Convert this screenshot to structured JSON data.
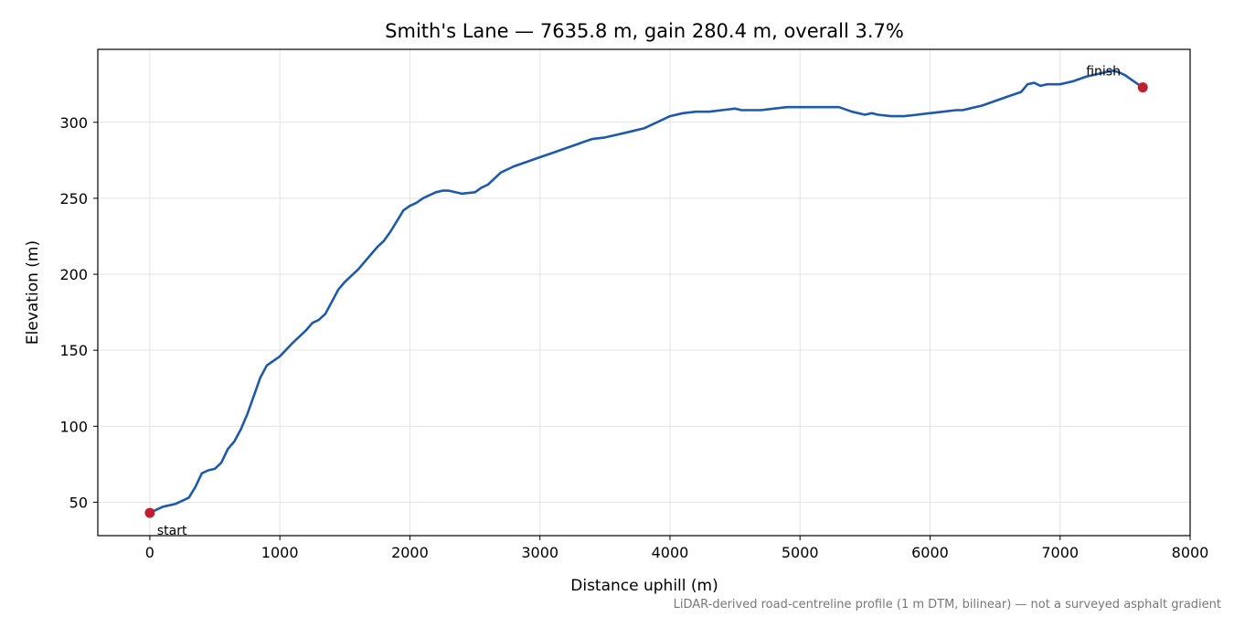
{
  "chart_data": {
    "type": "line",
    "title": "Smith's Lane — 7635.8 m, gain 280.4 m, overall 3.7%",
    "xlabel": "Distance uphill (m)",
    "ylabel": "Elevation (m)",
    "xlim": [
      -400,
      8000
    ],
    "ylim": [
      28,
      348
    ],
    "xticks": [
      0,
      1000,
      2000,
      3000,
      4000,
      5000,
      6000,
      7000,
      8000
    ],
    "yticks": [
      50,
      100,
      150,
      200,
      250,
      300
    ],
    "grid": true,
    "colors": {
      "line": "#1f5aa8",
      "marker": "#c0202e"
    },
    "series": [
      {
        "x": [
          0,
          50,
          100,
          150,
          200,
          250,
          300,
          350,
          400,
          450,
          500,
          550,
          600,
          650,
          700,
          750,
          800,
          850,
          900,
          950,
          1000,
          1100,
          1200,
          1250,
          1300,
          1350,
          1400,
          1450,
          1500,
          1550,
          1600,
          1650,
          1700,
          1750,
          1800,
          1850,
          1900,
          1950,
          2000,
          2050,
          2100,
          2150,
          2200,
          2250,
          2300,
          2400,
          2500,
          2550,
          2600,
          2650,
          2700,
          2800,
          2900,
          3000,
          3100,
          3200,
          3300,
          3400,
          3500,
          3600,
          3700,
          3800,
          3900,
          4000,
          4100,
          4200,
          4300,
          4400,
          4500,
          4550,
          4600,
          4700,
          4800,
          4900,
          5000,
          5100,
          5200,
          5300,
          5400,
          5500,
          5550,
          5600,
          5700,
          5800,
          5900,
          6000,
          6100,
          6200,
          6250,
          6300,
          6400,
          6500,
          6600,
          6700,
          6750,
          6800,
          6850,
          6900,
          7000,
          7100,
          7200,
          7300,
          7400,
          7450,
          7500,
          7550,
          7600,
          7635.8
        ],
        "y": [
          43,
          45,
          47,
          48,
          49,
          51,
          53,
          60,
          69,
          71,
          72,
          76,
          85,
          90,
          98,
          108,
          120,
          132,
          140,
          143,
          146,
          155,
          163,
          168,
          170,
          174,
          182,
          190,
          195,
          199,
          203,
          208,
          213,
          218,
          222,
          228,
          235,
          242,
          245,
          247,
          250,
          252,
          254,
          255,
          255,
          253,
          254,
          257,
          259,
          263,
          267,
          271,
          274,
          277,
          280,
          283,
          286,
          289,
          290,
          292,
          294,
          296,
          300,
          304,
          306,
          307,
          307,
          308,
          309,
          308,
          308,
          308,
          309,
          310,
          310,
          310,
          310,
          310,
          307,
          305,
          306,
          305,
          304,
          304,
          305,
          306,
          307,
          308,
          308,
          309,
          311,
          314,
          317,
          320,
          325,
          326,
          324,
          325,
          325,
          327,
          330,
          332,
          334,
          333,
          331,
          328,
          325,
          323
        ]
      }
    ],
    "annotations": [
      {
        "text": "start",
        "x": 0,
        "y": 43
      },
      {
        "text": "finish",
        "x": 7635.8,
        "y": 323
      }
    ],
    "footer": "LiDAR-derived road-centreline profile (1 m DTM, bilinear) — not a surveyed asphalt gradient"
  }
}
